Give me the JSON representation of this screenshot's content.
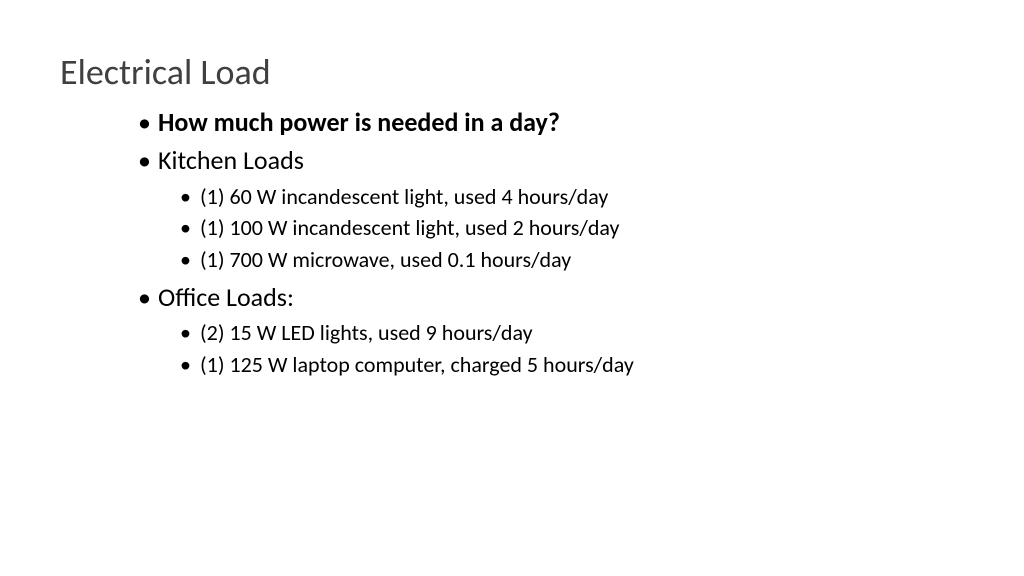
{
  "title": "Electrical Load",
  "main_question": "How much power is needed in a day?",
  "sections": {
    "kitchen": {
      "heading": "Kitchen Loads",
      "items": [
        "(1) 60 W incandescent light, used 4 hours/day",
        "(1) 100 W incandescent light, used 2 hours/day",
        "(1) 700 W microwave, used 0.1 hours/day"
      ]
    },
    "office": {
      "heading": "Office Loads:",
      "items": [
        "(2) 15 W LED lights, used 9 hours/day",
        "(1) 125 W laptop computer, charged 5 hours/day"
      ]
    }
  },
  "styling": {
    "background_color": "#ffffff",
    "title_color": "#404040",
    "text_color": "#000000",
    "title_fontsize": 36,
    "l1_fontsize": 26,
    "l2_fontsize": 22,
    "font_family": "Calibri"
  }
}
